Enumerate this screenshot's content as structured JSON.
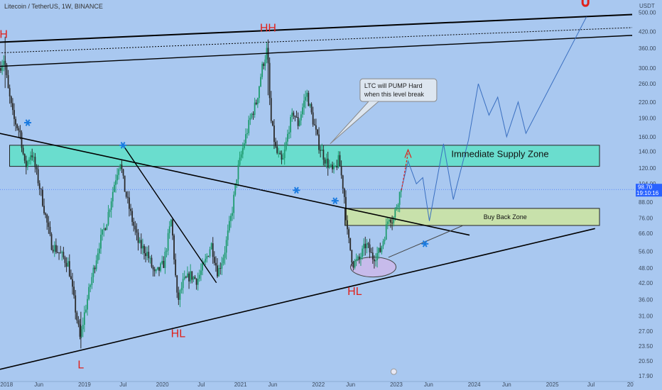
{
  "header": {
    "symbol": "Litecoin / TetherUS, 1W, BINANCE",
    "currency": "USDT"
  },
  "colors": {
    "background": "#a9c8f0",
    "candle_up": "#1e9b6f",
    "candle_down": "#2a2a2a",
    "supply_zone": "#5fe0c8",
    "buyback_zone": "#c9e3a6",
    "annotation_red": "#e0211b",
    "star_blue": "#1a7be0",
    "ellipse_fill": "#cdb8ea",
    "price_tag": "#2962ff"
  },
  "chart_data": {
    "type": "candlestick",
    "y_scale": "log",
    "ylim": [
      17,
      560
    ],
    "xlim": [
      "2017-12-01",
      "2026-01-20"
    ],
    "x_ticks": [
      {
        "label": "2018",
        "date": "2018-01-01"
      },
      {
        "label": "Jun",
        "date": "2018-06-01"
      },
      {
        "label": "2019",
        "date": "2019-01-01"
      },
      {
        "label": "Jul",
        "date": "2019-07-01"
      },
      {
        "label": "2020",
        "date": "2020-01-01"
      },
      {
        "label": "Jul",
        "date": "2020-07-01"
      },
      {
        "label": "2021",
        "date": "2021-01-01"
      },
      {
        "label": "Jun",
        "date": "2021-06-01"
      },
      {
        "label": "2022",
        "date": "2022-01-01"
      },
      {
        "label": "Jun",
        "date": "2022-06-01"
      },
      {
        "label": "2023",
        "date": "2023-01-01"
      },
      {
        "label": "Jun",
        "date": "2023-06-01"
      },
      {
        "label": "2024",
        "date": "2024-01-01"
      },
      {
        "label": "Jun",
        "date": "2024-06-01"
      },
      {
        "label": "2025",
        "date": "2025-01-01"
      },
      {
        "label": "Jul",
        "date": "2025-07-01"
      },
      {
        "label": "20",
        "date": "2026-01-01"
      }
    ],
    "y_ticks": [
      "500.00",
      "420.00",
      "360.00",
      "300.00",
      "260.00",
      "220.00",
      "190.00",
      "160.00",
      "140.00",
      "120.00",
      "104.00",
      "88.00",
      "76.00",
      "66.00",
      "56.00",
      "48.00",
      "42.00",
      "36.00",
      "31.00",
      "27.00",
      "23.50",
      "20.50",
      "17.90"
    ],
    "last_price": {
      "value": "98.70",
      "countdown": "19:10:16",
      "level_label": "104.00"
    },
    "price_path": [
      [
        "2017-12-01",
        300
      ],
      [
        "2017-12-25",
        330
      ],
      [
        "2018-01-10",
        250
      ],
      [
        "2018-02-05",
        190
      ],
      [
        "2018-03-10",
        165
      ],
      [
        "2018-04-01",
        120
      ],
      [
        "2018-05-01",
        140
      ],
      [
        "2018-06-15",
        95
      ],
      [
        "2018-08-01",
        60
      ],
      [
        "2018-09-10",
        55
      ],
      [
        "2018-10-20",
        50
      ],
      [
        "2018-11-25",
        32
      ],
      [
        "2018-12-15",
        25
      ],
      [
        "2019-01-05",
        32
      ],
      [
        "2019-02-10",
        45
      ],
      [
        "2019-03-15",
        60
      ],
      [
        "2019-04-20",
        75
      ],
      [
        "2019-05-25",
        105
      ],
      [
        "2019-06-20",
        130
      ],
      [
        "2019-07-10",
        100
      ],
      [
        "2019-08-15",
        75
      ],
      [
        "2019-09-15",
        60
      ],
      [
        "2019-10-25",
        55
      ],
      [
        "2019-11-30",
        45
      ],
      [
        "2020-01-10",
        50
      ],
      [
        "2020-02-15",
        75
      ],
      [
        "2020-03-15",
        35
      ],
      [
        "2020-04-10",
        42
      ],
      [
        "2020-05-15",
        45
      ],
      [
        "2020-06-15",
        43
      ],
      [
        "2020-07-20",
        50
      ],
      [
        "2020-08-20",
        60
      ],
      [
        "2020-09-20",
        46
      ],
      [
        "2020-10-20",
        55
      ],
      [
        "2020-11-25",
        80
      ],
      [
        "2020-12-20",
        115
      ],
      [
        "2021-01-20",
        150
      ],
      [
        "2021-02-20",
        190
      ],
      [
        "2021-03-20",
        220
      ],
      [
        "2021-04-15",
        300
      ],
      [
        "2021-05-10",
        360
      ],
      [
        "2021-05-25",
        190
      ],
      [
        "2021-06-20",
        140
      ],
      [
        "2021-07-20",
        125
      ],
      [
        "2021-08-20",
        175
      ],
      [
        "2021-09-10",
        200
      ],
      [
        "2021-10-01",
        180
      ],
      [
        "2021-11-10",
        240
      ],
      [
        "2021-12-01",
        200
      ],
      [
        "2022-01-05",
        150
      ],
      [
        "2022-02-05",
        130
      ],
      [
        "2022-03-15",
        115
      ],
      [
        "2022-04-10",
        130
      ],
      [
        "2022-05-05",
        95
      ],
      [
        "2022-05-20",
        66
      ],
      [
        "2022-06-15",
        50
      ],
      [
        "2022-07-15",
        52
      ],
      [
        "2022-08-15",
        60
      ],
      [
        "2022-09-15",
        53
      ],
      [
        "2022-10-20",
        56
      ],
      [
        "2022-11-10",
        65
      ],
      [
        "2022-12-01",
        78
      ],
      [
        "2022-12-20",
        74
      ],
      [
        "2023-01-05",
        85
      ],
      [
        "2023-01-25",
        98.7
      ]
    ],
    "anchors": [
      {
        "high": 390,
        "low": 45,
        "date": "2021-05-10"
      },
      {
        "high": 400,
        "low": 250,
        "date": "2017-12-25"
      },
      {
        "low": 23,
        "date": "2018-12-15"
      }
    ],
    "projection": [
      [
        "2023-01-25",
        98.7
      ],
      [
        "2023-02-25",
        128
      ],
      [
        "2023-04-05",
        104
      ],
      [
        "2023-05-05",
        110
      ],
      [
        "2023-06-05",
        74
      ],
      [
        "2023-08-10",
        150
      ],
      [
        "2023-09-25",
        90
      ],
      [
        "2023-12-05",
        155
      ],
      [
        "2024-01-20",
        260
      ],
      [
        "2024-03-10",
        195
      ],
      [
        "2024-04-20",
        230
      ],
      [
        "2024-06-01",
        160
      ],
      [
        "2024-07-25",
        220
      ],
      [
        "2024-08-30",
        165
      ],
      [
        "2025-06-10",
        480
      ]
    ],
    "annotations": {
      "H": "H",
      "HH": "HH",
      "L": "L",
      "HL_2020": "HL",
      "HL_2022": "HL",
      "supply_zone_label": "Immediate Supply Zone",
      "buyback_zone_label": "Buy Back Zone",
      "callout_line1": "LTC will PUMP Hard",
      "callout_line2": "when this level break"
    }
  }
}
